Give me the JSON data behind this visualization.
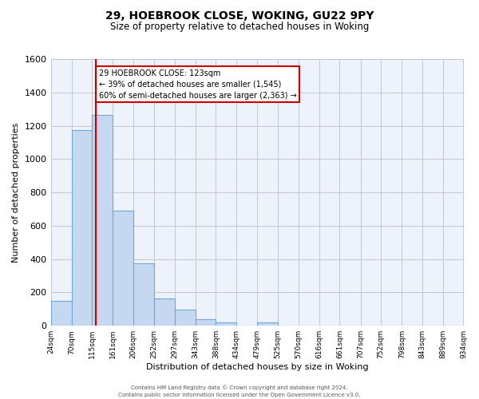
{
  "title_line1": "29, HOEBROOK CLOSE, WOKING, GU22 9PY",
  "title_line2": "Size of property relative to detached houses in Woking",
  "xlabel": "Distribution of detached houses by size in Woking",
  "ylabel": "Number of detached properties",
  "bin_edges": [
    24,
    70,
    115,
    161,
    206,
    252,
    297,
    343,
    388,
    434,
    479,
    525,
    570,
    616,
    661,
    707,
    752,
    798,
    843,
    889,
    934
  ],
  "bar_heights": [
    150,
    1175,
    1265,
    690,
    375,
    165,
    95,
    37,
    22,
    0,
    18,
    0,
    0,
    0,
    0,
    0,
    0,
    0,
    0,
    0
  ],
  "bar_color": "#c5d8f0",
  "bar_edge_color": "#6fa8d6",
  "bar_edge_width": 0.8,
  "vline_x": 123,
  "vline_color": "#cc0000",
  "ylim": [
    0,
    1600
  ],
  "yticks": [
    0,
    200,
    400,
    600,
    800,
    1000,
    1200,
    1400,
    1600
  ],
  "grid_color": "#c0c8d8",
  "background_color": "#eef2fa",
  "annotation_line1": "29 HOEBROOK CLOSE: 123sqm",
  "annotation_line2": "← 39% of detached houses are smaller (1,545)",
  "annotation_line3": "60% of semi-detached houses are larger (2,363) →",
  "footer_line1": "Contains HM Land Registry data © Crown copyright and database right 2024.",
  "footer_line2": "Contains public sector information licensed under the Open Government Licence v3.0.",
  "tick_labels": [
    "24sqm",
    "70sqm",
    "115sqm",
    "161sqm",
    "206sqm",
    "252sqm",
    "297sqm",
    "343sqm",
    "388sqm",
    "434sqm",
    "479sqm",
    "525sqm",
    "570sqm",
    "616sqm",
    "661sqm",
    "707sqm",
    "752sqm",
    "798sqm",
    "843sqm",
    "889sqm",
    "934sqm"
  ],
  "title_fontsize": 10,
  "subtitle_fontsize": 8.5,
  "ylabel_fontsize": 8,
  "xlabel_fontsize": 8,
  "ytick_fontsize": 8,
  "xtick_fontsize": 6.5,
  "annotation_fontsize": 7,
  "footer_fontsize": 5
}
